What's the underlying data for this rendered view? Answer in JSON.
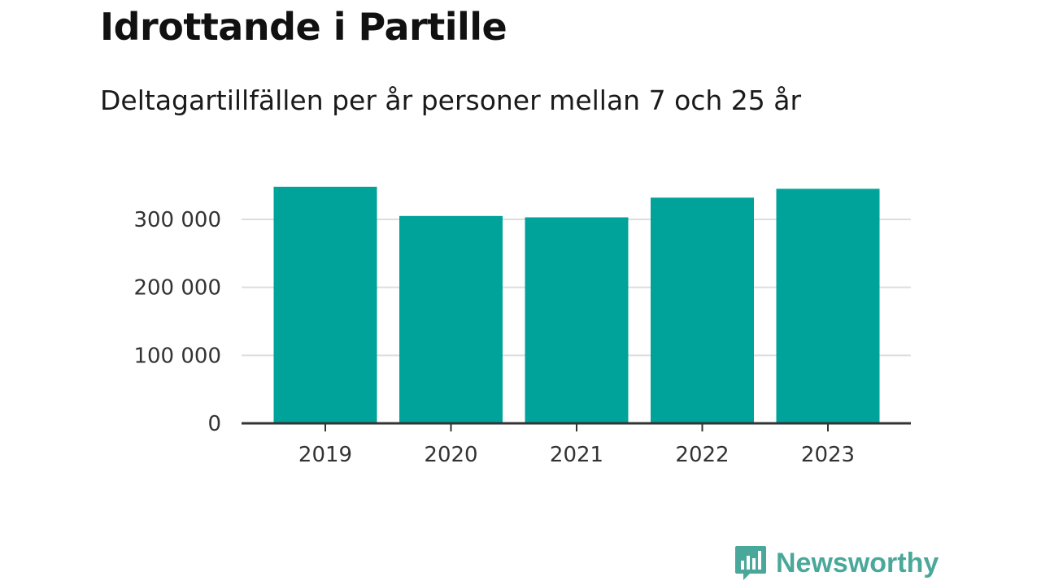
{
  "header": {
    "title": "Idrottande i Partille",
    "subtitle": "Deltagartillfällen per år personer mellan 7 och 25 år"
  },
  "brand": {
    "name": "Newsworthy",
    "logo_icon": "bar-chart-speech-bubble-icon",
    "color": "#4aa89a"
  },
  "colors": {
    "bar": "#00a39a",
    "grid": "#dddddd",
    "axis": "#333333"
  },
  "chart_data": {
    "type": "bar",
    "title": "Idrottande i Partille",
    "subtitle": "Deltagartillfällen per år personer mellan 7 och 25 år",
    "categories": [
      "2019",
      "2020",
      "2021",
      "2022",
      "2023"
    ],
    "values": [
      348000,
      305000,
      303000,
      332000,
      345000
    ],
    "ylim": [
      0,
      350000
    ],
    "yticks": [
      0,
      100000,
      200000,
      300000
    ],
    "ytick_labels": [
      "0",
      "100 000",
      "200 000",
      "300 000"
    ],
    "grid": true,
    "xlabel": "",
    "ylabel": ""
  }
}
